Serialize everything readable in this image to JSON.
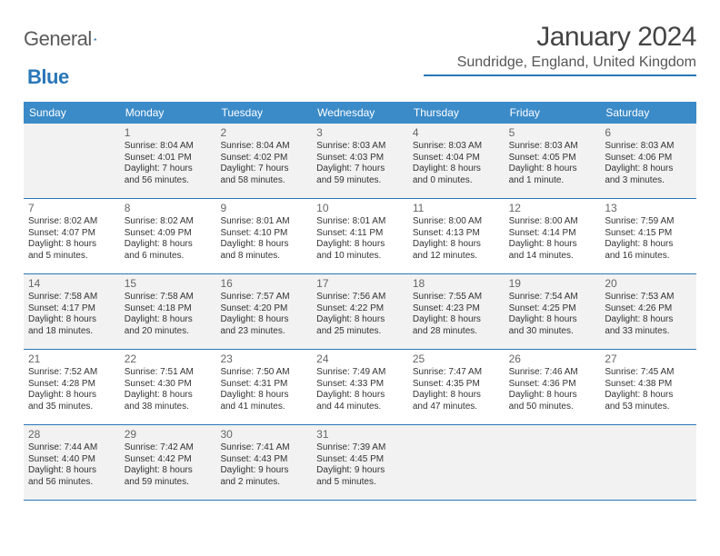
{
  "logo": {
    "part1": "General",
    "part2": "Blue"
  },
  "title": "January 2024",
  "location": "Sundridge, England, United Kingdom",
  "colors": {
    "header_bg": "#3b8bc9",
    "accent": "#2977b8",
    "shade": "#f2f2f2",
    "text": "#333333"
  },
  "day_names": [
    "Sunday",
    "Monday",
    "Tuesday",
    "Wednesday",
    "Thursday",
    "Friday",
    "Saturday"
  ],
  "weeks": [
    [
      {
        "n": "",
        "lines": []
      },
      {
        "n": "1",
        "lines": [
          "Sunrise: 8:04 AM",
          "Sunset: 4:01 PM",
          "Daylight: 7 hours",
          "and 56 minutes."
        ]
      },
      {
        "n": "2",
        "lines": [
          "Sunrise: 8:04 AM",
          "Sunset: 4:02 PM",
          "Daylight: 7 hours",
          "and 58 minutes."
        ]
      },
      {
        "n": "3",
        "lines": [
          "Sunrise: 8:03 AM",
          "Sunset: 4:03 PM",
          "Daylight: 7 hours",
          "and 59 minutes."
        ]
      },
      {
        "n": "4",
        "lines": [
          "Sunrise: 8:03 AM",
          "Sunset: 4:04 PM",
          "Daylight: 8 hours",
          "and 0 minutes."
        ]
      },
      {
        "n": "5",
        "lines": [
          "Sunrise: 8:03 AM",
          "Sunset: 4:05 PM",
          "Daylight: 8 hours",
          "and 1 minute."
        ]
      },
      {
        "n": "6",
        "lines": [
          "Sunrise: 8:03 AM",
          "Sunset: 4:06 PM",
          "Daylight: 8 hours",
          "and 3 minutes."
        ]
      }
    ],
    [
      {
        "n": "7",
        "lines": [
          "Sunrise: 8:02 AM",
          "Sunset: 4:07 PM",
          "Daylight: 8 hours",
          "and 5 minutes."
        ]
      },
      {
        "n": "8",
        "lines": [
          "Sunrise: 8:02 AM",
          "Sunset: 4:09 PM",
          "Daylight: 8 hours",
          "and 6 minutes."
        ]
      },
      {
        "n": "9",
        "lines": [
          "Sunrise: 8:01 AM",
          "Sunset: 4:10 PM",
          "Daylight: 8 hours",
          "and 8 minutes."
        ]
      },
      {
        "n": "10",
        "lines": [
          "Sunrise: 8:01 AM",
          "Sunset: 4:11 PM",
          "Daylight: 8 hours",
          "and 10 minutes."
        ]
      },
      {
        "n": "11",
        "lines": [
          "Sunrise: 8:00 AM",
          "Sunset: 4:13 PM",
          "Daylight: 8 hours",
          "and 12 minutes."
        ]
      },
      {
        "n": "12",
        "lines": [
          "Sunrise: 8:00 AM",
          "Sunset: 4:14 PM",
          "Daylight: 8 hours",
          "and 14 minutes."
        ]
      },
      {
        "n": "13",
        "lines": [
          "Sunrise: 7:59 AM",
          "Sunset: 4:15 PM",
          "Daylight: 8 hours",
          "and 16 minutes."
        ]
      }
    ],
    [
      {
        "n": "14",
        "lines": [
          "Sunrise: 7:58 AM",
          "Sunset: 4:17 PM",
          "Daylight: 8 hours",
          "and 18 minutes."
        ]
      },
      {
        "n": "15",
        "lines": [
          "Sunrise: 7:58 AM",
          "Sunset: 4:18 PM",
          "Daylight: 8 hours",
          "and 20 minutes."
        ]
      },
      {
        "n": "16",
        "lines": [
          "Sunrise: 7:57 AM",
          "Sunset: 4:20 PM",
          "Daylight: 8 hours",
          "and 23 minutes."
        ]
      },
      {
        "n": "17",
        "lines": [
          "Sunrise: 7:56 AM",
          "Sunset: 4:22 PM",
          "Daylight: 8 hours",
          "and 25 minutes."
        ]
      },
      {
        "n": "18",
        "lines": [
          "Sunrise: 7:55 AM",
          "Sunset: 4:23 PM",
          "Daylight: 8 hours",
          "and 28 minutes."
        ]
      },
      {
        "n": "19",
        "lines": [
          "Sunrise: 7:54 AM",
          "Sunset: 4:25 PM",
          "Daylight: 8 hours",
          "and 30 minutes."
        ]
      },
      {
        "n": "20",
        "lines": [
          "Sunrise: 7:53 AM",
          "Sunset: 4:26 PM",
          "Daylight: 8 hours",
          "and 33 minutes."
        ]
      }
    ],
    [
      {
        "n": "21",
        "lines": [
          "Sunrise: 7:52 AM",
          "Sunset: 4:28 PM",
          "Daylight: 8 hours",
          "and 35 minutes."
        ]
      },
      {
        "n": "22",
        "lines": [
          "Sunrise: 7:51 AM",
          "Sunset: 4:30 PM",
          "Daylight: 8 hours",
          "and 38 minutes."
        ]
      },
      {
        "n": "23",
        "lines": [
          "Sunrise: 7:50 AM",
          "Sunset: 4:31 PM",
          "Daylight: 8 hours",
          "and 41 minutes."
        ]
      },
      {
        "n": "24",
        "lines": [
          "Sunrise: 7:49 AM",
          "Sunset: 4:33 PM",
          "Daylight: 8 hours",
          "and 44 minutes."
        ]
      },
      {
        "n": "25",
        "lines": [
          "Sunrise: 7:47 AM",
          "Sunset: 4:35 PM",
          "Daylight: 8 hours",
          "and 47 minutes."
        ]
      },
      {
        "n": "26",
        "lines": [
          "Sunrise: 7:46 AM",
          "Sunset: 4:36 PM",
          "Daylight: 8 hours",
          "and 50 minutes."
        ]
      },
      {
        "n": "27",
        "lines": [
          "Sunrise: 7:45 AM",
          "Sunset: 4:38 PM",
          "Daylight: 8 hours",
          "and 53 minutes."
        ]
      }
    ],
    [
      {
        "n": "28",
        "lines": [
          "Sunrise: 7:44 AM",
          "Sunset: 4:40 PM",
          "Daylight: 8 hours",
          "and 56 minutes."
        ]
      },
      {
        "n": "29",
        "lines": [
          "Sunrise: 7:42 AM",
          "Sunset: 4:42 PM",
          "Daylight: 8 hours",
          "and 59 minutes."
        ]
      },
      {
        "n": "30",
        "lines": [
          "Sunrise: 7:41 AM",
          "Sunset: 4:43 PM",
          "Daylight: 9 hours",
          "and 2 minutes."
        ]
      },
      {
        "n": "31",
        "lines": [
          "Sunrise: 7:39 AM",
          "Sunset: 4:45 PM",
          "Daylight: 9 hours",
          "and 5 minutes."
        ]
      },
      {
        "n": "",
        "lines": []
      },
      {
        "n": "",
        "lines": []
      },
      {
        "n": "",
        "lines": []
      }
    ]
  ]
}
